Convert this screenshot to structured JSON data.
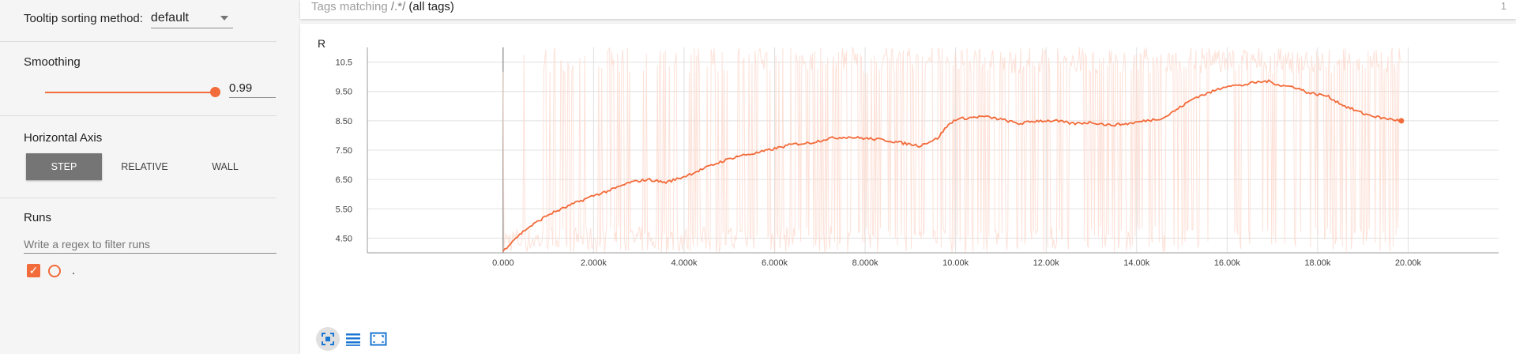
{
  "sidebar": {
    "tooltip_label": "Tooltip sorting method:",
    "tooltip_value": "default",
    "smoothing_label": "Smoothing",
    "smoothing_value": "0.99",
    "smoothing_fraction": 0.99,
    "horizontal_axis_label": "Horizontal Axis",
    "axis_buttons": [
      "STEP",
      "RELATIVE",
      "WALL"
    ],
    "axis_selected": "STEP",
    "runs_label": "Runs",
    "runs_filter_placeholder": "Write a regex to filter runs",
    "run_name": "."
  },
  "tags": {
    "prefix": "Tags matching",
    "pattern": "/.*/",
    "all": "(all tags)",
    "count": "1"
  },
  "colors": {
    "accent": "#f26b3a",
    "raw_line": "#fcd8cc",
    "grid": "#e0e0e0"
  },
  "icons": {
    "fit": "fit-domain-icon",
    "logscale": "log-scale-icon",
    "zoom": "expand-icon"
  },
  "chart_data": {
    "type": "line",
    "title": "R",
    "xlabel": "",
    "ylabel": "",
    "xlim": [
      -3000,
      22000
    ],
    "ylim": [
      4.0,
      11.0
    ],
    "x_ticks": [
      "0.000",
      "2.000k",
      "4.000k",
      "6.000k",
      "8.000k",
      "10.00k",
      "12.00k",
      "14.00k",
      "16.00k",
      "18.00k",
      "20.00k"
    ],
    "y_ticks": [
      "4.50",
      "5.50",
      "6.50",
      "7.50",
      "8.50",
      "9.50",
      "10.5"
    ],
    "raw_range": [
      4.0,
      11.0
    ],
    "series": [
      {
        "x": [
          0,
          200,
          500,
          800,
          1000,
          1300,
          1600,
          2000,
          2400,
          2800,
          3200,
          3600,
          4000,
          4400,
          4800,
          5200,
          5600,
          6000,
          6400,
          6800,
          7200,
          7600,
          8000,
          8400,
          8800,
          9200,
          9600,
          9800,
          10000,
          10300,
          10600,
          11000,
          11400,
          11800,
          12200,
          12600,
          13000,
          13400,
          13800,
          14200,
          14600,
          15000,
          15300,
          15600,
          16000,
          16300,
          16600,
          16900,
          17200,
          17500,
          17800,
          18200,
          18600,
          19000,
          19400,
          19850
        ],
        "values": [
          4.05,
          4.4,
          4.8,
          5.1,
          5.3,
          5.5,
          5.7,
          5.95,
          6.15,
          6.4,
          6.5,
          6.4,
          6.6,
          6.85,
          7.1,
          7.3,
          7.4,
          7.55,
          7.7,
          7.75,
          7.9,
          7.95,
          7.9,
          7.85,
          7.75,
          7.65,
          7.9,
          8.3,
          8.55,
          8.6,
          8.65,
          8.55,
          8.4,
          8.5,
          8.5,
          8.4,
          8.45,
          8.35,
          8.4,
          8.5,
          8.6,
          9.0,
          9.3,
          9.45,
          9.7,
          9.7,
          9.8,
          9.85,
          9.7,
          9.65,
          9.45,
          9.35,
          9.0,
          8.75,
          8.6,
          8.5
        ]
      }
    ]
  }
}
